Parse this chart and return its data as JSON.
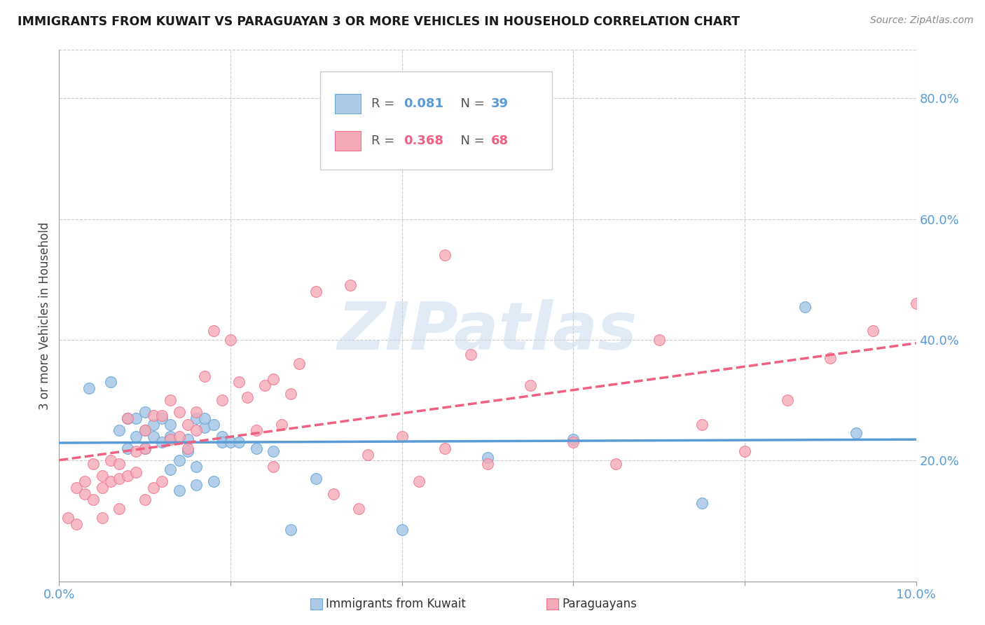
{
  "title": "IMMIGRANTS FROM KUWAIT VS PARAGUAYAN 3 OR MORE VEHICLES IN HOUSEHOLD CORRELATION CHART",
  "source": "Source: ZipAtlas.com",
  "ylabel": "3 or more Vehicles in Household",
  "xlim": [
    0.0,
    0.1
  ],
  "ylim": [
    0.0,
    0.88
  ],
  "y_ticks_right": [
    0.2,
    0.4,
    0.6,
    0.8
  ],
  "y_tick_labels_right": [
    "20.0%",
    "40.0%",
    "60.0%",
    "80.0%"
  ],
  "color_blue": "#adc9e8",
  "color_pink": "#f5aab8",
  "color_blue_edge": "#6aaad4",
  "color_pink_edge": "#f07090",
  "color_blue_line": "#5b9bd5",
  "color_pink_line": "#f06080",
  "color_blue_text": "#5b9bd5",
  "color_pink_text": "#f06080",
  "watermark": "ZIPatlas",
  "background_color": "#ffffff",
  "grid_color": "#cccccc",
  "blue_x": [
    0.0035,
    0.006,
    0.007,
    0.008,
    0.008,
    0.009,
    0.009,
    0.01,
    0.01,
    0.01,
    0.011,
    0.011,
    0.012,
    0.012,
    0.013,
    0.013,
    0.013,
    0.014,
    0.014,
    0.015,
    0.015,
    0.016,
    0.016,
    0.016,
    0.017,
    0.017,
    0.018,
    0.018,
    0.019,
    0.019,
    0.02,
    0.021,
    0.023,
    0.025,
    0.027,
    0.03,
    0.04,
    0.05,
    0.06,
    0.075,
    0.087,
    0.093
  ],
  "blue_y": [
    0.32,
    0.33,
    0.25,
    0.22,
    0.27,
    0.24,
    0.27,
    0.22,
    0.25,
    0.28,
    0.24,
    0.26,
    0.23,
    0.27,
    0.185,
    0.24,
    0.26,
    0.15,
    0.2,
    0.215,
    0.235,
    0.19,
    0.16,
    0.27,
    0.255,
    0.27,
    0.165,
    0.26,
    0.24,
    0.23,
    0.23,
    0.23,
    0.22,
    0.215,
    0.085,
    0.17,
    0.085,
    0.205,
    0.235,
    0.13,
    0.455,
    0.245
  ],
  "pink_x": [
    0.001,
    0.002,
    0.002,
    0.003,
    0.003,
    0.004,
    0.004,
    0.005,
    0.005,
    0.005,
    0.006,
    0.006,
    0.007,
    0.007,
    0.007,
    0.008,
    0.008,
    0.009,
    0.009,
    0.01,
    0.01,
    0.01,
    0.011,
    0.011,
    0.012,
    0.012,
    0.013,
    0.013,
    0.014,
    0.014,
    0.015,
    0.015,
    0.016,
    0.016,
    0.017,
    0.018,
    0.019,
    0.02,
    0.021,
    0.022,
    0.023,
    0.024,
    0.025,
    0.026,
    0.027,
    0.028,
    0.03,
    0.032,
    0.034,
    0.036,
    0.04,
    0.042,
    0.045,
    0.048,
    0.05,
    0.055,
    0.06,
    0.065,
    0.07,
    0.075,
    0.08,
    0.085,
    0.09,
    0.095,
    0.1,
    0.025,
    0.035,
    0.045
  ],
  "pink_y": [
    0.105,
    0.095,
    0.155,
    0.145,
    0.165,
    0.135,
    0.195,
    0.105,
    0.155,
    0.175,
    0.165,
    0.2,
    0.12,
    0.17,
    0.195,
    0.175,
    0.27,
    0.18,
    0.215,
    0.135,
    0.22,
    0.25,
    0.155,
    0.275,
    0.165,
    0.275,
    0.235,
    0.3,
    0.24,
    0.28,
    0.22,
    0.26,
    0.25,
    0.28,
    0.34,
    0.415,
    0.3,
    0.4,
    0.33,
    0.305,
    0.25,
    0.325,
    0.19,
    0.26,
    0.31,
    0.36,
    0.48,
    0.145,
    0.49,
    0.21,
    0.24,
    0.165,
    0.22,
    0.375,
    0.195,
    0.325,
    0.23,
    0.195,
    0.4,
    0.26,
    0.215,
    0.3,
    0.37,
    0.415,
    0.46,
    0.335,
    0.12,
    0.54
  ]
}
